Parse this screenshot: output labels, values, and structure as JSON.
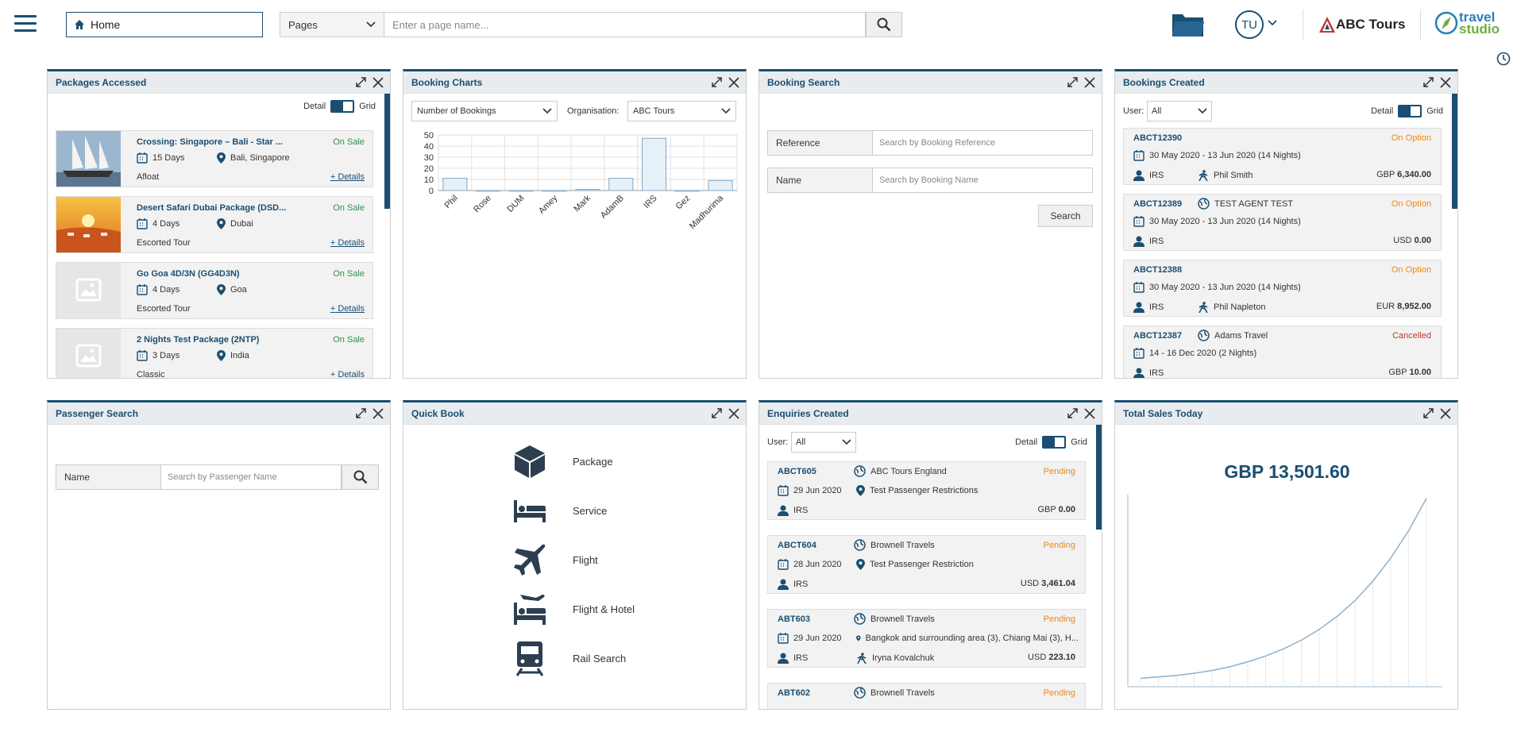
{
  "header": {
    "home_label": "Home",
    "pages_select": "Pages",
    "page_search_placeholder": "Enter a page name...",
    "user_initials": "TU",
    "brand_name": "ABC Tours",
    "studio_logo_line1": "travel",
    "studio_logo_line2": "studio"
  },
  "widgets": {
    "packages": {
      "title": "Packages Accessed",
      "toggle_left": "Detail",
      "toggle_right": "Grid",
      "items": [
        {
          "title": "Crossing: Singapore – Bali - Star ...",
          "status": "On Sale",
          "days": "15 Days",
          "location": "Bali, Singapore",
          "type": "Afloat",
          "details": "+ Details",
          "image": "ship"
        },
        {
          "title": "Desert Safari Dubai Package (DSD...",
          "status": "On Sale",
          "days": "4 Days",
          "location": "Dubai",
          "type": "Escorted Tour",
          "details": "+ Details",
          "image": "desert"
        },
        {
          "title": "Go Goa 4D/3N (GG4D3N)",
          "status": "On Sale",
          "days": "4 Days",
          "location": "Goa",
          "type": "Escorted Tour",
          "details": "+ Details",
          "image": "placeholder"
        },
        {
          "title": "2 Nights Test Package (2NTP)",
          "status": "On Sale",
          "days": "3 Days",
          "location": "India",
          "type": "Classic",
          "details": "+ Details",
          "image": "placeholder"
        }
      ]
    },
    "booking_charts": {
      "title": "Booking Charts",
      "metric_select": "Number of Bookings",
      "org_label": "Organisation:",
      "org_select": "ABC Tours"
    },
    "booking_search": {
      "title": "Booking Search",
      "ref_label": "Reference",
      "ref_placeholder": "Search by Booking Reference",
      "name_label": "Name",
      "name_placeholder": "Search by Booking Name",
      "search_button": "Search"
    },
    "bookings_created": {
      "title": "Bookings Created",
      "user_label": "User:",
      "user_select": "All",
      "toggle_left": "Detail",
      "toggle_right": "Grid",
      "items": [
        {
          "ref": "ABCT12390",
          "status": "On Option",
          "agent": "",
          "dates": "30 May 2020 - 13 Jun 2020 (14 Nights)",
          "user": "IRS",
          "lead": "Phil Smith",
          "currency": "GBP",
          "amount": "6,340.00"
        },
        {
          "ref": "ABCT12389",
          "status": "On Option",
          "agent": "TEST AGENT TEST",
          "dates": "30 May 2020 - 13 Jun 2020 (14 Nights)",
          "user": "IRS",
          "lead": "",
          "currency": "USD",
          "amount": "0.00"
        },
        {
          "ref": "ABCT12388",
          "status": "On Option",
          "agent": "",
          "dates": "30 May 2020 - 13 Jun 2020 (14 Nights)",
          "user": "IRS",
          "lead": "Phil Napleton",
          "currency": "EUR",
          "amount": "8,952.00"
        },
        {
          "ref": "ABCT12387",
          "status": "Cancelled",
          "agent": "Adams Travel",
          "dates": "14 - 16 Dec 2020 (2 Nights)",
          "user": "IRS",
          "lead": "",
          "currency": "GBP",
          "amount": "10.00"
        }
      ]
    },
    "passenger_search": {
      "title": "Passenger Search",
      "name_label": "Name",
      "name_placeholder": "Search by Passenger Name"
    },
    "quick_book": {
      "title": "Quick Book",
      "items": [
        {
          "label": "Package",
          "icon": "package-icon"
        },
        {
          "label": "Service",
          "icon": "bed-icon"
        },
        {
          "label": "Flight",
          "icon": "plane-icon"
        },
        {
          "label": "Flight & Hotel",
          "icon": "flight-hotel-icon"
        },
        {
          "label": "Rail Search",
          "icon": "train-icon"
        }
      ]
    },
    "enquiries": {
      "title": "Enquiries Created",
      "user_label": "User:",
      "user_select": "All",
      "toggle_left": "Detail",
      "toggle_right": "Grid",
      "items": [
        {
          "ref": "ABCT605",
          "status": "Pending",
          "agent": "ABC Tours England",
          "date": "29 Jun 2020",
          "location": "Test Passenger Restrictions",
          "user": "IRS",
          "lead": "",
          "currency": "GBP",
          "amount": "0.00"
        },
        {
          "ref": "ABCT604",
          "status": "Pending",
          "agent": "Brownell Travels",
          "date": "28 Jun 2020",
          "location": "Test Passenger Restriction",
          "user": "IRS",
          "lead": "",
          "currency": "USD",
          "amount": "3,461.04"
        },
        {
          "ref": "ABT603",
          "status": "Pending",
          "agent": "Brownell Travels",
          "date": "29 Jun 2020",
          "location": "Bangkok and surrounding area (3), Chiang Mai (3), H...",
          "user": "IRS",
          "lead": "Iryna Kovalchuk",
          "currency": "USD",
          "amount": "223.10"
        },
        {
          "ref": "ABT602",
          "status": "Pending",
          "agent": "Brownell Travels",
          "date": "",
          "location": "",
          "user": "",
          "lead": "",
          "currency": "",
          "amount": ""
        }
      ]
    },
    "total_sales": {
      "title": "Total Sales Today",
      "amount": "GBP 13,501.60"
    }
  },
  "chart_data": [
    {
      "type": "bar",
      "categories": [
        "Phil",
        "Rose",
        "DUM",
        "Amey",
        "Mark",
        "AdamB",
        "IRS",
        "Gez",
        "Madhurima"
      ],
      "values": [
        11,
        0,
        0,
        0,
        1,
        11,
        47,
        0,
        9
      ],
      "ylim": [
        0,
        50
      ],
      "yticks": [
        0,
        10,
        20,
        30,
        40,
        50
      ],
      "grid": true
    },
    {
      "type": "area",
      "x": [
        0,
        1,
        2,
        3,
        4,
        5,
        6,
        7,
        8,
        9,
        10,
        11,
        12,
        13,
        14,
        15,
        16
      ],
      "values": [
        0.5,
        0.7,
        0.9,
        1.2,
        1.6,
        2.1,
        2.8,
        3.6,
        4.6,
        5.8,
        7.3,
        9.1,
        11.3,
        14.0,
        17.2,
        21.0,
        25.5
      ],
      "grid": false
    }
  ],
  "colors": {
    "accent": "#1a4e72",
    "on_sale": "#2f8f4e",
    "on_option": "#e88a1a",
    "cancelled": "#c0392b",
    "pending": "#e88a1a",
    "bar_fill": "#e8f0f7",
    "bar_stroke": "#7fa8c9"
  }
}
